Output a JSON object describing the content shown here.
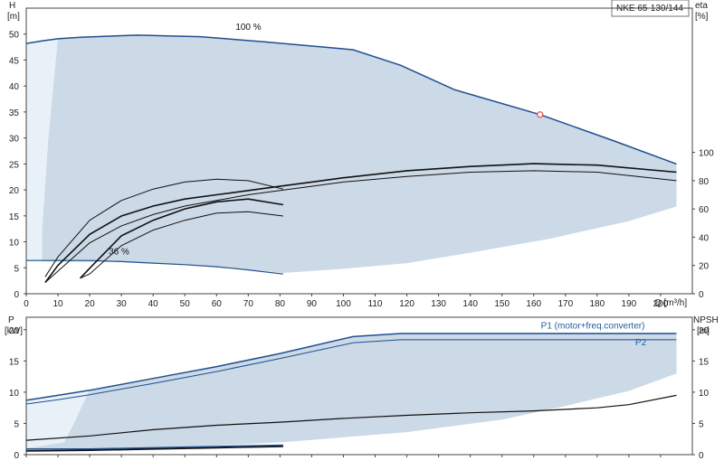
{
  "chart_data": [
    {
      "type": "line",
      "title": "NKE 65-130/144",
      "xlabel": "Q [m³/h]",
      "ylabel": "H\n[m]",
      "y2label": "eta\n[%]",
      "xlim": [
        0,
        210
      ],
      "ylim": [
        0,
        55
      ],
      "y2lim": [
        0,
        100
      ],
      "grid": false,
      "x_ticks": [
        0,
        10,
        20,
        30,
        40,
        50,
        60,
        70,
        80,
        90,
        100,
        110,
        120,
        130,
        140,
        150,
        160,
        170,
        180,
        190,
        200
      ],
      "y_ticks": [
        0,
        5,
        10,
        15,
        20,
        25,
        30,
        35,
        40,
        45,
        50
      ],
      "y2_ticks": [
        0,
        20,
        40,
        60,
        80,
        100
      ],
      "labels": [
        {
          "text": "100 %",
          "x": 66,
          "y": 50.8
        },
        {
          "text": "36 %",
          "x": 26,
          "y": 7.6
        }
      ],
      "duty_point": {
        "x": 162,
        "y": 34.5
      },
      "operating_area": [
        [
          0,
          48.2
        ],
        [
          5,
          48.7
        ],
        [
          10,
          49.1
        ],
        [
          17,
          49.4
        ],
        [
          35,
          49.8
        ],
        [
          55,
          49.5
        ],
        [
          75,
          48.5
        ],
        [
          103,
          47.0
        ],
        [
          118,
          44.0
        ],
        [
          135,
          39.3
        ],
        [
          162,
          34.5
        ],
        [
          185,
          29.5
        ],
        [
          205,
          25.0
        ],
        [
          205,
          16.8
        ],
        [
          190,
          14.0
        ],
        [
          165,
          10.6
        ],
        [
          140,
          7.9
        ],
        [
          120,
          5.9
        ],
        [
          100,
          4.8
        ],
        [
          81,
          4.0
        ],
        [
          70,
          4.7
        ],
        [
          50,
          5.5
        ],
        [
          30,
          6.1
        ],
        [
          5,
          6.2
        ]
      ],
      "series": [
        {
          "kind": "head",
          "x": [
            0,
            5,
            10,
            17,
            35,
            55,
            75,
            103,
            118,
            135,
            162,
            185,
            205
          ],
          "y": [
            48.2,
            48.7,
            49.1,
            49.4,
            49.8,
            49.5,
            48.5,
            47.0,
            44.0,
            39.3,
            34.5,
            29.5,
            25.0
          ]
        },
        {
          "kind": "head",
          "x": [
            0,
            10,
            20,
            30,
            40,
            50,
            60,
            70,
            81
          ],
          "y": [
            6.4,
            6.4,
            6.4,
            6.2,
            5.9,
            5.6,
            5.2,
            4.6,
            3.8
          ]
        },
        {
          "kind": "efficiency",
          "x": [
            6,
            10,
            20,
            30,
            40,
            50,
            60,
            70,
            80,
            90,
            100,
            120,
            140,
            160,
            180,
            205
          ],
          "y": [
            8,
            16,
            36,
            48,
            56,
            62,
            66,
            70,
            73,
            76,
            79,
            83,
            86,
            87,
            86,
            80
          ]
        },
        {
          "kind": "efficiency",
          "x": [
            6,
            10,
            20,
            30,
            40,
            50,
            60,
            70,
            80,
            90,
            100,
            120,
            140,
            160,
            180,
            205
          ],
          "y": [
            8,
            20,
            42,
            55,
            62,
            67,
            70,
            73,
            76,
            79,
            82,
            87,
            90,
            92,
            91,
            86
          ]
        },
        {
          "kind": "efficiency",
          "x": [
            17,
            20,
            30,
            40,
            50,
            60,
            70,
            81
          ],
          "y": [
            11,
            14,
            34,
            45,
            52,
            57,
            58,
            55
          ]
        },
        {
          "kind": "efficiency",
          "x": [
            17,
            20,
            30,
            40,
            50,
            60,
            70,
            81
          ],
          "y": [
            11,
            18,
            41,
            52,
            60,
            65,
            67,
            63
          ]
        },
        {
          "kind": "efficiency",
          "x": [
            6,
            10,
            20,
            30,
            40,
            50,
            60,
            70,
            81
          ],
          "y": [
            12,
            26,
            52,
            66,
            74,
            79,
            81,
            80,
            74
          ]
        }
      ]
    },
    {
      "type": "line",
      "xlabel": "",
      "ylabel": "P\n[kW]",
      "y2label": "NPSH\n[m]",
      "xlim": [
        0,
        210
      ],
      "ylim": [
        0,
        22
      ],
      "y2lim": [
        0,
        22
      ],
      "grid": false,
      "y_ticks": [
        0,
        5,
        10,
        15,
        20
      ],
      "y2_ticks": [
        0,
        5,
        10,
        15,
        20
      ],
      "operating_area": [
        [
          0,
          8.8
        ],
        [
          10,
          9.6
        ],
        [
          20,
          10.3
        ],
        [
          40,
          12.2
        ],
        [
          60,
          14.1
        ],
        [
          80,
          16.2
        ],
        [
          103,
          18.9
        ],
        [
          118,
          19.5
        ],
        [
          205,
          19.5
        ],
        [
          205,
          13.0
        ],
        [
          190,
          10.2
        ],
        [
          170,
          7.8
        ],
        [
          150,
          5.6
        ],
        [
          120,
          3.6
        ],
        [
          81,
          2.0
        ],
        [
          50,
          1.2
        ],
        [
          0,
          0.8
        ]
      ],
      "series": [
        {
          "name": "P1 (motor+freq.converter)",
          "x": [
            0,
            10,
            20,
            40,
            60,
            80,
            103,
            118,
            205
          ],
          "y": [
            8.7,
            9.5,
            10.3,
            12.2,
            14.1,
            16.2,
            18.9,
            19.4,
            19.4
          ]
        },
        {
          "name": "P2",
          "x": [
            0,
            10,
            20,
            40,
            60,
            80,
            103,
            118,
            205
          ],
          "y": [
            8.1,
            8.8,
            9.6,
            11.4,
            13.3,
            15.4,
            17.9,
            18.4,
            18.4
          ]
        },
        {
          "kind": "npsh",
          "x": [
            0,
            20,
            40,
            60,
            80,
            100,
            120,
            140,
            160,
            180,
            190,
            205
          ],
          "y": [
            2.3,
            3.0,
            4.0,
            4.7,
            5.2,
            5.8,
            6.3,
            6.7,
            7.0,
            7.5,
            8.0,
            9.5
          ]
        },
        {
          "kind": "low",
          "x": [
            0,
            20,
            40,
            60,
            81
          ],
          "y": [
            0.9,
            0.9,
            1.1,
            1.3,
            1.5
          ]
        },
        {
          "kind": "low",
          "x": [
            0,
            20,
            40,
            60,
            81
          ],
          "y": [
            0.6,
            0.7,
            0.9,
            1.1,
            1.3
          ]
        }
      ]
    }
  ]
}
